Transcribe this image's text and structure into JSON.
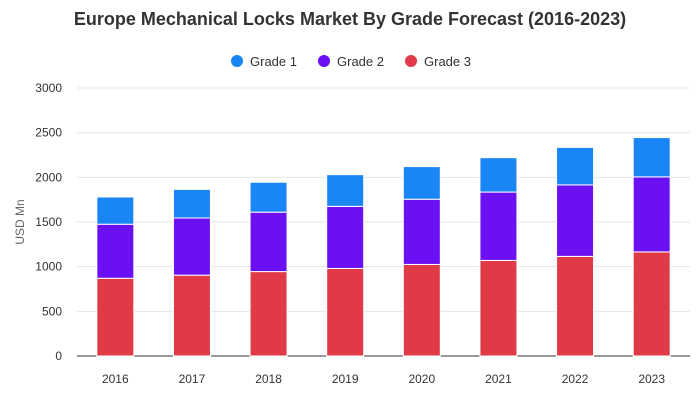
{
  "chart_data": {
    "type": "bar",
    "stacked": true,
    "title": "Europe Mechanical Locks Market By Grade Forecast (2016-2023)",
    "xlabel": "",
    "ylabel": "USD Mn",
    "categories": [
      "2016",
      "2017",
      "2018",
      "2019",
      "2020",
      "2021",
      "2022",
      "2023"
    ],
    "ylim": [
      0,
      3000
    ],
    "yticks": [
      "0",
      "500",
      "1000",
      "1500",
      "2000",
      "2500",
      "3000"
    ],
    "grid": true,
    "legend_position": "top-center",
    "series": [
      {
        "name": "Grade 3",
        "color": "#e03a47",
        "values": [
          870,
          905,
          945,
          980,
          1025,
          1070,
          1115,
          1165
        ]
      },
      {
        "name": "Grade 2",
        "color": "#6b10f2",
        "values": [
          605,
          640,
          665,
          695,
          730,
          765,
          800,
          840
        ]
      },
      {
        "name": "Grade 1",
        "color": "#1a85f5",
        "values": [
          305,
          320,
          335,
          355,
          365,
          385,
          420,
          440
        ]
      }
    ],
    "legend_order": [
      "Grade 1",
      "Grade 2",
      "Grade 3"
    ]
  }
}
